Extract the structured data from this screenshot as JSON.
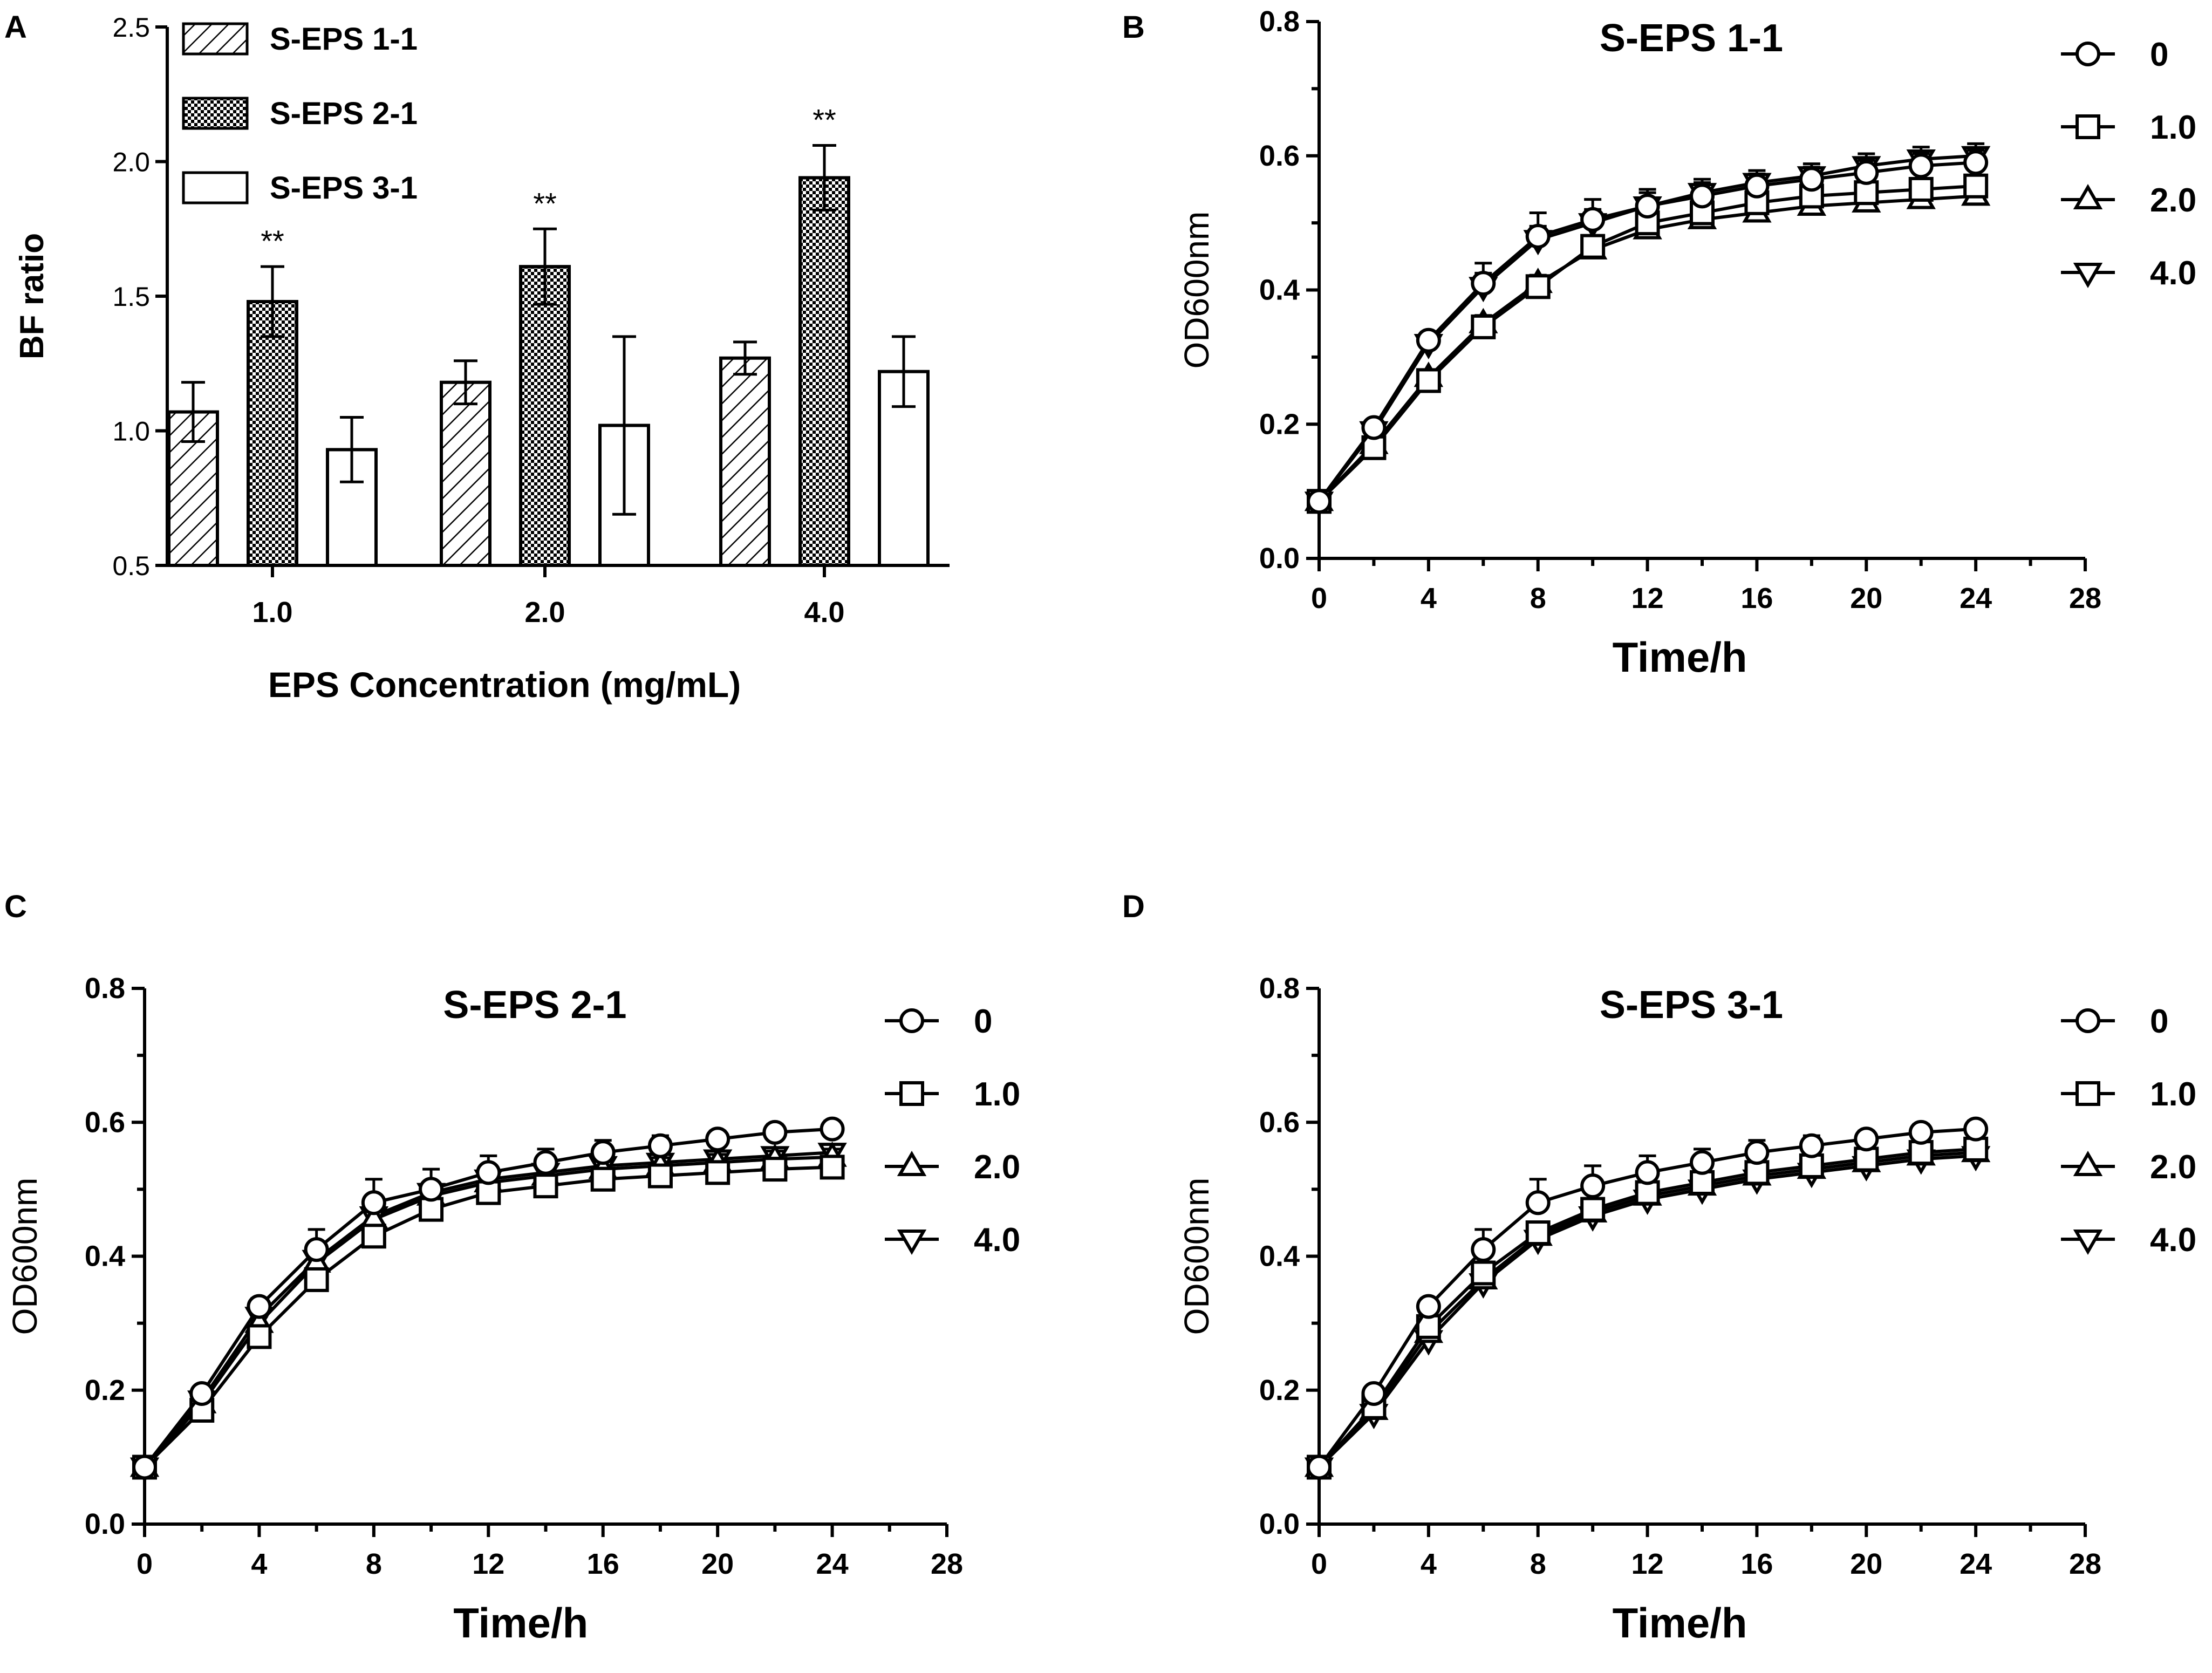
{
  "panel_labels": [
    "A",
    "B",
    "C",
    "D"
  ],
  "chart_data": [
    {
      "type": "bar",
      "panel": "A",
      "title": "",
      "xlabel": "EPS Concentration (mg/mL)",
      "ylabel": "BF ratio",
      "ylim": [
        0.5,
        2.5
      ],
      "yticks": [
        "0.5",
        "1.0",
        "1.5",
        "2.0",
        "2.5"
      ],
      "categories": [
        "1.0",
        "2.0",
        "4.0"
      ],
      "significance": "**",
      "legend_position": "top-left",
      "series": [
        {
          "name": "S-EPS 1-1",
          "fill": "hatch",
          "values": [
            1.07,
            1.18,
            1.27
          ],
          "errors": [
            0.11,
            0.08,
            0.06
          ],
          "sig": [
            "",
            "",
            ""
          ]
        },
        {
          "name": "S-EPS 2-1",
          "fill": "checker",
          "values": [
            1.48,
            1.61,
            1.94
          ],
          "errors": [
            0.13,
            0.14,
            0.12
          ],
          "sig": [
            "**",
            "**",
            "**"
          ]
        },
        {
          "name": "S-EPS 3-1",
          "fill": "white",
          "values": [
            0.93,
            1.02,
            1.22
          ],
          "errors": [
            0.12,
            0.33,
            0.13
          ],
          "sig": [
            "",
            "",
            ""
          ]
        }
      ]
    },
    {
      "type": "line",
      "panel": "B",
      "title": "S-EPS 1-1",
      "xlabel": "Time/h",
      "ylabel": "OD600nm",
      "xlim": [
        0,
        28
      ],
      "ylim": [
        0,
        0.8
      ],
      "xticks": [
        "0",
        "4",
        "8",
        "12",
        "16",
        "20",
        "24",
        "28"
      ],
      "yticks": [
        "0.0",
        "0.2",
        "0.4",
        "0.6",
        "0.8"
      ],
      "legend_position": "top-right",
      "x": [
        0,
        2,
        4,
        6,
        8,
        10,
        12,
        14,
        16,
        18,
        20,
        22,
        24
      ],
      "series": [
        {
          "name": "0",
          "marker": "circle",
          "values": [
            0.085,
            0.195,
            0.325,
            0.41,
            0.48,
            0.505,
            0.525,
            0.54,
            0.555,
            0.565,
            0.575,
            0.585,
            0.59
          ],
          "errors": [
            0.005,
            0.01,
            0.012,
            0.03,
            0.035,
            0.03,
            0.025,
            0.02,
            0.018,
            0.018,
            0.018,
            0.018,
            0.018
          ]
        },
        {
          "name": "1.0",
          "marker": "square",
          "values": [
            0.085,
            0.165,
            0.265,
            0.345,
            0.405,
            0.465,
            0.5,
            0.515,
            0.53,
            0.54,
            0.545,
            0.55,
            0.555
          ],
          "errors": [
            0.005,
            0.008,
            0.01,
            0.012,
            0.012,
            0.012,
            0.012,
            0.012,
            0.012,
            0.012,
            0.012,
            0.012,
            0.012
          ]
        },
        {
          "name": "2.0",
          "marker": "triangle-up",
          "values": [
            0.085,
            0.17,
            0.27,
            0.35,
            0.41,
            0.46,
            0.49,
            0.505,
            0.515,
            0.525,
            0.53,
            0.535,
            0.54
          ],
          "errors": [
            0.005,
            0.008,
            0.01,
            0.012,
            0.012,
            0.012,
            0.012,
            0.012,
            0.012,
            0.012,
            0.012,
            0.012,
            0.012
          ]
        },
        {
          "name": "4.0",
          "marker": "triangle-down",
          "values": [
            0.085,
            0.19,
            0.32,
            0.405,
            0.475,
            0.5,
            0.525,
            0.545,
            0.56,
            0.57,
            0.585,
            0.595,
            0.6
          ],
          "errors": [
            0.005,
            0.01,
            0.012,
            0.02,
            0.02,
            0.02,
            0.02,
            0.02,
            0.018,
            0.018,
            0.018,
            0.018,
            0.018
          ]
        }
      ]
    },
    {
      "type": "line",
      "panel": "C",
      "title": "S-EPS 2-1",
      "xlabel": "Time/h",
      "ylabel": "OD600nm",
      "xlim": [
        0,
        28
      ],
      "ylim": [
        0,
        0.8
      ],
      "xticks": [
        "0",
        "4",
        "8",
        "12",
        "16",
        "20",
        "24",
        "28"
      ],
      "yticks": [
        "0.0",
        "0.2",
        "0.4",
        "0.6",
        "0.8"
      ],
      "legend_position": "top-right",
      "x": [
        0,
        2,
        4,
        6,
        8,
        10,
        12,
        14,
        16,
        18,
        20,
        22,
        24
      ],
      "series": [
        {
          "name": "0",
          "marker": "circle",
          "values": [
            0.085,
            0.195,
            0.325,
            0.41,
            0.48,
            0.5,
            0.525,
            0.54,
            0.555,
            0.565,
            0.575,
            0.585,
            0.59
          ],
          "errors": [
            0.005,
            0.01,
            0.012,
            0.03,
            0.035,
            0.03,
            0.025,
            0.02,
            0.018,
            0.015,
            0.012,
            0.012,
            0.012
          ]
        },
        {
          "name": "1.0",
          "marker": "square",
          "values": [
            0.085,
            0.17,
            0.28,
            0.365,
            0.43,
            0.47,
            0.495,
            0.505,
            0.515,
            0.52,
            0.525,
            0.53,
            0.533
          ],
          "errors": [
            0.005,
            0.008,
            0.01,
            0.01,
            0.01,
            0.01,
            0.01,
            0.01,
            0.01,
            0.01,
            0.01,
            0.01,
            0.01
          ]
        },
        {
          "name": "2.0",
          "marker": "triangle-up",
          "values": [
            0.085,
            0.18,
            0.3,
            0.39,
            0.455,
            0.49,
            0.51,
            0.52,
            0.53,
            0.535,
            0.54,
            0.545,
            0.548
          ],
          "errors": [
            0.005,
            0.008,
            0.01,
            0.012,
            0.012,
            0.012,
            0.012,
            0.012,
            0.012,
            0.012,
            0.012,
            0.012,
            0.012
          ]
        },
        {
          "name": "4.0",
          "marker": "triangle-down",
          "values": [
            0.085,
            0.185,
            0.31,
            0.395,
            0.46,
            0.495,
            0.515,
            0.525,
            0.535,
            0.54,
            0.545,
            0.55,
            0.555
          ],
          "errors": [
            0.005,
            0.008,
            0.01,
            0.012,
            0.012,
            0.012,
            0.012,
            0.012,
            0.012,
            0.012,
            0.012,
            0.012,
            0.012
          ]
        }
      ]
    },
    {
      "type": "line",
      "panel": "D",
      "title": "S-EPS 3-1",
      "xlabel": "Time/h",
      "ylabel": "OD600nm",
      "xlim": [
        0,
        28
      ],
      "ylim": [
        0,
        0.8
      ],
      "xticks": [
        "0",
        "4",
        "8",
        "12",
        "16",
        "20",
        "24",
        "28"
      ],
      "yticks": [
        "0.0",
        "0.2",
        "0.4",
        "0.6",
        "0.8"
      ],
      "legend_position": "top-right",
      "x": [
        0,
        2,
        4,
        6,
        8,
        10,
        12,
        14,
        16,
        18,
        20,
        22,
        24
      ],
      "series": [
        {
          "name": "0",
          "marker": "circle",
          "values": [
            0.085,
            0.195,
            0.325,
            0.41,
            0.48,
            0.505,
            0.525,
            0.54,
            0.555,
            0.565,
            0.575,
            0.585,
            0.59
          ],
          "errors": [
            0.005,
            0.01,
            0.012,
            0.03,
            0.035,
            0.03,
            0.025,
            0.02,
            0.018,
            0.015,
            0.012,
            0.012,
            0.012
          ]
        },
        {
          "name": "1.0",
          "marker": "square",
          "values": [
            0.085,
            0.175,
            0.295,
            0.375,
            0.435,
            0.47,
            0.495,
            0.51,
            0.525,
            0.535,
            0.545,
            0.555,
            0.56
          ],
          "errors": [
            0.005,
            0.008,
            0.01,
            0.01,
            0.01,
            0.01,
            0.01,
            0.01,
            0.01,
            0.01,
            0.01,
            0.01,
            0.01
          ]
        },
        {
          "name": "2.0",
          "marker": "triangle-up",
          "values": [
            0.085,
            0.17,
            0.285,
            0.365,
            0.43,
            0.465,
            0.49,
            0.505,
            0.52,
            0.53,
            0.54,
            0.55,
            0.555
          ],
          "errors": [
            0.005,
            0.008,
            0.01,
            0.012,
            0.012,
            0.012,
            0.012,
            0.012,
            0.012,
            0.012,
            0.012,
            0.012,
            0.012
          ]
        },
        {
          "name": "4.0",
          "marker": "triangle-down",
          "values": [
            0.085,
            0.165,
            0.275,
            0.36,
            0.425,
            0.46,
            0.485,
            0.5,
            0.515,
            0.525,
            0.535,
            0.545,
            0.55
          ],
          "errors": [
            0.005,
            0.008,
            0.01,
            0.012,
            0.012,
            0.012,
            0.012,
            0.012,
            0.012,
            0.012,
            0.012,
            0.012,
            0.012
          ]
        }
      ]
    }
  ]
}
